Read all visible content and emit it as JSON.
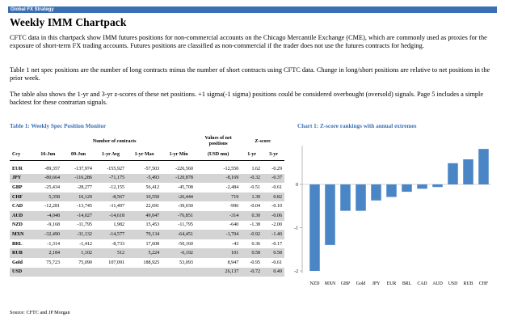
{
  "header": {
    "bar_label": "Global FX Strategy"
  },
  "document": {
    "title": "Weekly IMM Chartpack",
    "paragraph1": "CFTC data in this chartpack show IMM futures positions for non-commercial accounts on the Chicago Mercantile Exchange (CME), which are commonly used as proxies for the exposure of short-term FX trading accounts. Futures positions are classified as non-commercial if the trader does not use the futures contracts for hedging.",
    "paragraph2": "Table 1 net spec positions are the number of long contracts minus the number of short contracts using CFTC data. Change in long/short positions are relative to net positions in the prior week.",
    "paragraph3": "The table also shows the 1-yr and 3-yr z-scores of these net positions. +1 sigma(-1 sigma) positions could be considered overbought (oversold) signals. Page 5 includes a simple backtest for these contrarian signals.",
    "source": "Source: CFTC and JP Morgan"
  },
  "table1": {
    "title": "Table 1: Weekly Spec Position Monitor",
    "group_contracts": "Number of contracts",
    "group_values_line1": "Values of net",
    "group_values_line2": "positions",
    "group_zscore": "Z-score",
    "columns": [
      "Ccy",
      "16-Jun",
      "09-Jun",
      "1-yr Avg",
      "1-yr Max",
      "1-yr Min",
      "(USD mn)",
      "1-yr",
      "3-yr"
    ],
    "rows": [
      [
        "EUR",
        "-89,357",
        "-137,974",
        "-155,927",
        "-57,503",
        "-226,560",
        "-12,550",
        "1.62",
        "-0.29"
      ],
      [
        "JPY",
        "-80,664",
        "-116,286",
        "-71,175",
        "-5,493",
        "-120,878",
        "-8,169",
        "-0.32",
        "-0.37"
      ],
      [
        "GBP",
        "-25,434",
        "-28,277",
        "-12,155",
        "56,412",
        "-45,708",
        "-2,484",
        "-0.51",
        "-0.61"
      ],
      [
        "CHF",
        "5,358",
        "10,129",
        "-8,567",
        "10,550",
        "-26,444",
        "719",
        "1.39",
        "0.82"
      ],
      [
        "CAD",
        "-12,281",
        "-13,745",
        "-11,497",
        "22,691",
        "-39,030",
        "-996",
        "-0.04",
        "-0.10"
      ],
      [
        "AUD",
        "-4,048",
        "-14,027",
        "-14,618",
        "49,047",
        "-76,851",
        "-314",
        "0.30",
        "-0.06"
      ],
      [
        "NZD",
        "-9,168",
        "-11,795",
        "1,982",
        "15,453",
        "-11,795",
        "-640",
        "-1.38",
        "-2.00"
      ],
      [
        "MXN",
        "-32,490",
        "-31,132",
        "-14,577",
        "79,134",
        "-64,451",
        "-1,704",
        "-0.92",
        "-1.40"
      ],
      [
        "BRL",
        "-1,314",
        "-1,412",
        "-8,733",
        "17,608",
        "-50,160",
        "-43",
        "0.36",
        "-0.17"
      ],
      [
        "RUB",
        "2,184",
        "1,102",
        "512",
        "5,224",
        "-6,192",
        "101",
        "0.58",
        "0.58"
      ],
      [
        "Gold",
        "75,723",
        "75,090",
        "107,091",
        "188,925",
        "53,093",
        "8,947",
        "-0.95",
        "-0.61"
      ],
      [
        "USD",
        "",
        "",
        "",
        "",
        "",
        "26,137",
        "-0.72",
        "0.49"
      ]
    ]
  },
  "chart_data": {
    "type": "bar",
    "title": "Chart 1: Z-score rankings with annual extremes",
    "categories": [
      "NZD",
      "MXN",
      "GBP",
      "Gold",
      "JPY",
      "EUR",
      "BRL",
      "CAD",
      "AUD",
      "USD",
      "RUB",
      "CHF"
    ],
    "values": [
      -2.0,
      -1.4,
      -0.61,
      -0.61,
      -0.37,
      -0.29,
      -0.17,
      -0.1,
      -0.06,
      0.49,
      0.58,
      0.82
    ],
    "yticks": [
      "0",
      "-1",
      "-2"
    ],
    "ylim": [
      -2.1,
      0.9
    ],
    "bar_color": "#4a86c5",
    "grid": false
  },
  "colors": {
    "accent": "#3a6fb4",
    "shade": "#d4d4d4"
  }
}
